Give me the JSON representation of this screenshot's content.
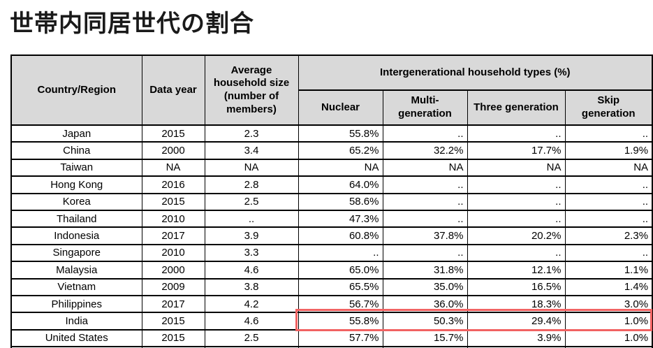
{
  "page": {
    "title": "世帯内同居世代の割合"
  },
  "table": {
    "headers": {
      "country": "Country/Region",
      "data_year": "Data year",
      "avg_household_size": "Average\nhousehold size\n(number of\nmembers)",
      "intergenerational_group": "Intergenerational household types (%)",
      "nuclear": "Nuclear",
      "multi_generation": "Multi-\ngeneration",
      "three_generation": "Three generation",
      "skip_generation": "Skip\ngeneration"
    },
    "rows": [
      {
        "country": "Japan",
        "year": "2015",
        "avg_size": "2.3",
        "nuclear": "55.8%",
        "multi": "..",
        "three": "..",
        "skip": ".."
      },
      {
        "country": "China",
        "year": "2000",
        "avg_size": "3.4",
        "nuclear": "65.2%",
        "multi": "32.2%",
        "three": "17.7%",
        "skip": "1.9%"
      },
      {
        "country": "Taiwan",
        "year": "NA",
        "avg_size": "NA",
        "nuclear": "NA",
        "multi": "NA",
        "three": "NA",
        "skip": "NA"
      },
      {
        "country": "Hong Kong",
        "year": "2016",
        "avg_size": "2.8",
        "nuclear": "64.0%",
        "multi": "..",
        "three": "..",
        "skip": ".."
      },
      {
        "country": "Korea",
        "year": "2015",
        "avg_size": "2.5",
        "nuclear": "58.6%",
        "multi": "..",
        "three": "..",
        "skip": ".."
      },
      {
        "country": "Thailand",
        "year": "2010",
        "avg_size": "..",
        "nuclear": "47.3%",
        "multi": "..",
        "three": "..",
        "skip": ".."
      },
      {
        "country": "Indonesia",
        "year": "2017",
        "avg_size": "3.9",
        "nuclear": "60.8%",
        "multi": "37.8%",
        "three": "20.2%",
        "skip": "2.3%"
      },
      {
        "country": "Singapore",
        "year": "2010",
        "avg_size": "3.3",
        "nuclear": "..",
        "multi": "..",
        "three": "..",
        "skip": ".."
      },
      {
        "country": "Malaysia",
        "year": "2000",
        "avg_size": "4.6",
        "nuclear": "65.0%",
        "multi": "31.8%",
        "three": "12.1%",
        "skip": "1.1%"
      },
      {
        "country": "Vietnam",
        "year": "2009",
        "avg_size": "3.8",
        "nuclear": "65.5%",
        "multi": "35.0%",
        "three": "16.5%",
        "skip": "1.4%"
      },
      {
        "country": "Philippines",
        "year": "2017",
        "avg_size": "4.2",
        "nuclear": "56.7%",
        "multi": "36.0%",
        "three": "18.3%",
        "skip": "3.0%"
      },
      {
        "country": "India",
        "year": "2015",
        "avg_size": "4.6",
        "nuclear": "55.8%",
        "multi": "50.3%",
        "three": "29.4%",
        "skip": "1.0%"
      },
      {
        "country": "United States",
        "year": "2015",
        "avg_size": "2.5",
        "nuclear": "57.7%",
        "multi": "15.7%",
        "three": "3.9%",
        "skip": "1.0%"
      }
    ]
  },
  "highlight": {
    "highlighted_row": "India",
    "color": "#f16262"
  }
}
